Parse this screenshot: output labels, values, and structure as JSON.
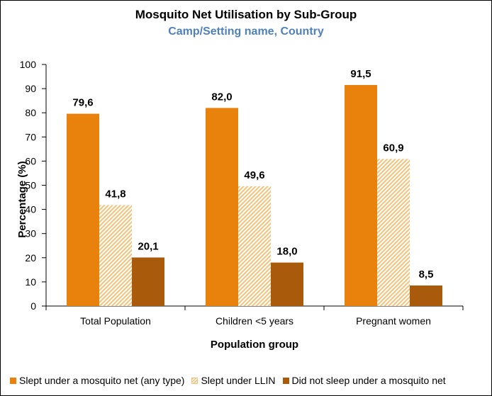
{
  "chart_data": {
    "type": "bar",
    "title": "Mosquito Net Utilisation by Sub-Group",
    "subtitle": "Camp/Setting name, Country",
    "xlabel": "Population group",
    "ylabel": "Percentage (%)",
    "ylim": [
      0,
      100
    ],
    "yticks": [
      0,
      10,
      20,
      30,
      40,
      50,
      60,
      70,
      80,
      90,
      100
    ],
    "categories": [
      "Total Population",
      "Children <5 years",
      "Pregnant women"
    ],
    "series": [
      {
        "name": "Slept under a mosquito net (any type)",
        "values": [
          79.6,
          82.0,
          91.5
        ],
        "labels": [
          "79,6",
          "82,0",
          "91,5"
        ],
        "color": "#e8820c",
        "pattern": "solid"
      },
      {
        "name": "Slept under LLIN",
        "values": [
          41.8,
          49.6,
          60.9
        ],
        "labels": [
          "41,8",
          "49,6",
          "60,9"
        ],
        "color": "#f3c27a",
        "pattern": "hatched"
      },
      {
        "name": "Did not sleep under a mosquito net",
        "values": [
          20.1,
          18.0,
          8.5
        ],
        "labels": [
          "20,1",
          "18,0",
          "8,5"
        ],
        "color": "#a95a0a",
        "pattern": "solid"
      }
    ],
    "grid": false,
    "legend_position": "bottom"
  },
  "colors": {
    "subtitle": "#4f81bd",
    "axis": "#000000"
  }
}
